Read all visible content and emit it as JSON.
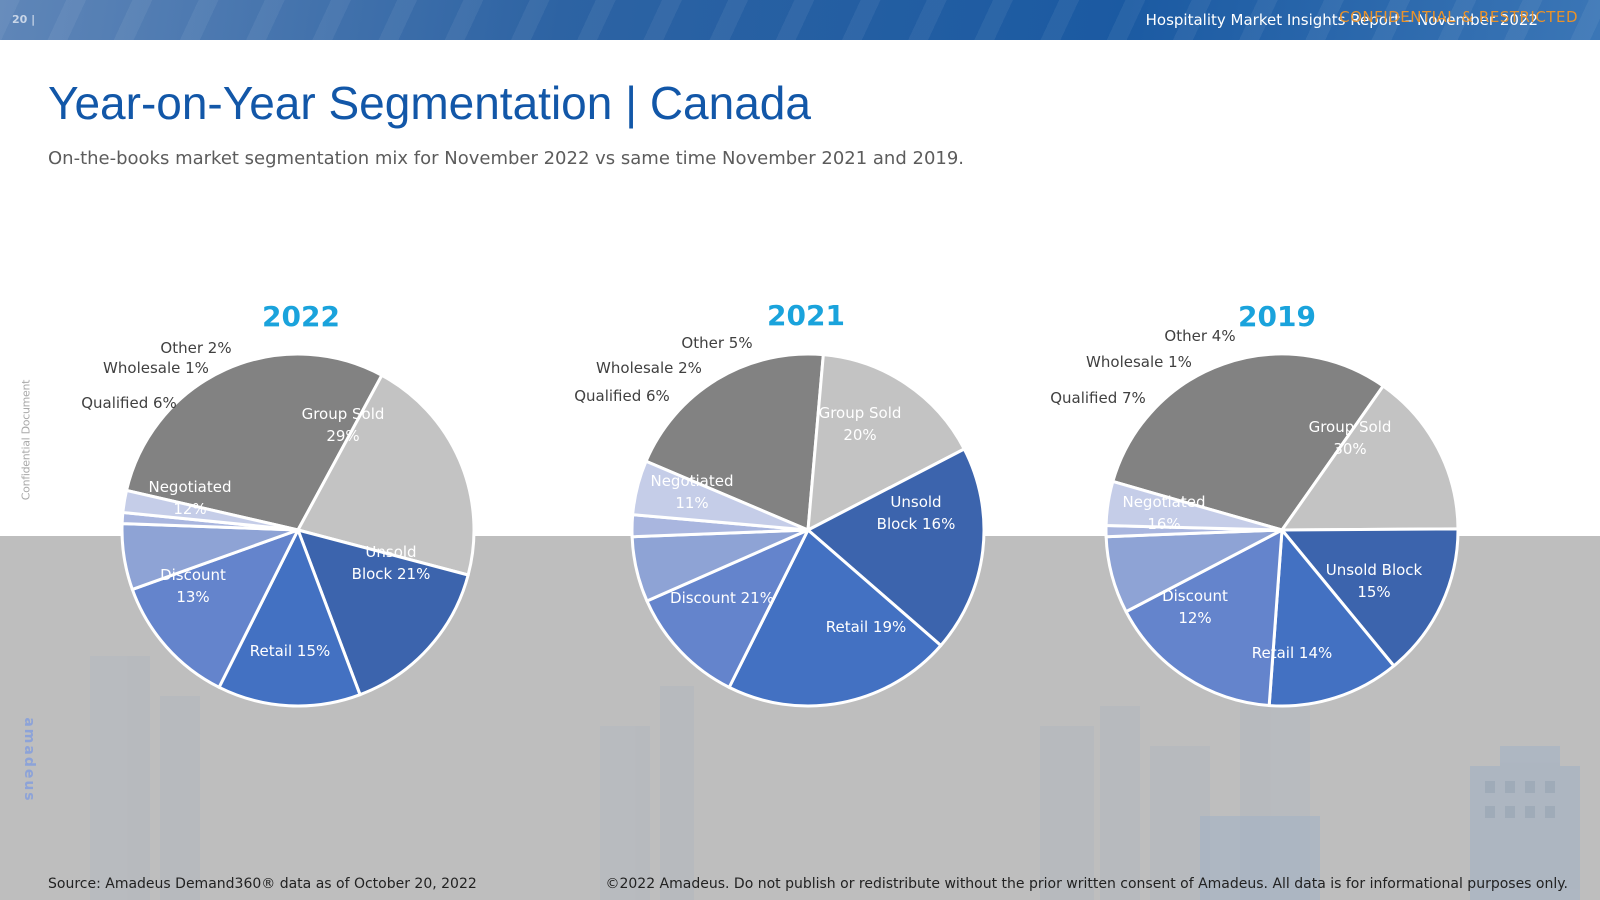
{
  "header": {
    "page_number": "20 |",
    "report_title": "Hospitality Market Insights Report – November 2022",
    "confidential": "CONFIDENTIAL & RESTRICTED"
  },
  "title": "Year-on-Year Segmentation | Canada",
  "subtitle": "On-the-books market segmentation mix for November 2022 vs same time November 2021 and 2019.",
  "side_label": "Confidential Document",
  "brand": "amadeus",
  "footer": {
    "source": "Source: Amadeus Demand360® data as of October 20, 2022",
    "copyright": "©2022 Amadeus. Do not publish or redistribute without the prior written consent of Amadeus. All data is for informational purposes only."
  },
  "colors": {
    "title": "#1257a8",
    "chart_title": "#1aa3dc",
    "Group Sold": "#828282",
    "Unsold Block": "#c3c3c3",
    "Retail": "#3c64ad",
    "Discount": "#4371c2",
    "Negotiated": "#6484cc",
    "Qualified": "#8ea3d5",
    "Wholesale": "#a9b6df",
    "Other": "#c5cde8"
  },
  "chart_data": [
    {
      "type": "pie",
      "title": "2022",
      "slices": [
        {
          "name": "Group Sold",
          "value": 29,
          "label_lines": [
            "Group Sold",
            "29%"
          ]
        },
        {
          "name": "Unsold Block",
          "value": 21,
          "label_lines": [
            "Unsold",
            "Block 21%"
          ]
        },
        {
          "name": "Retail",
          "value": 15,
          "label_lines": [
            "Retail 15%"
          ]
        },
        {
          "name": "Discount",
          "value": 13,
          "label_lines": [
            "Discount",
            "13%"
          ]
        },
        {
          "name": "Negotiated",
          "value": 12,
          "label_lines": [
            "Negotiated",
            "12%"
          ]
        },
        {
          "name": "Qualified",
          "value": 6,
          "label_lines": [
            "Qualified 6%"
          ]
        },
        {
          "name": "Wholesale",
          "value": 1,
          "label_lines": [
            "Wholesale 1%"
          ]
        },
        {
          "name": "Other",
          "value": 2,
          "label_lines": [
            "Other 2%"
          ]
        }
      ]
    },
    {
      "type": "pie",
      "title": "2021",
      "slices": [
        {
          "name": "Group Sold",
          "value": 20,
          "label_lines": [
            "Group Sold",
            "20%"
          ]
        },
        {
          "name": "Unsold Block",
          "value": 16,
          "label_lines": [
            "Unsold",
            "Block 16%"
          ]
        },
        {
          "name": "Retail",
          "value": 19,
          "label_lines": [
            "Retail 19%"
          ]
        },
        {
          "name": "Discount",
          "value": 21,
          "label_lines": [
            "Discount 21%"
          ]
        },
        {
          "name": "Negotiated",
          "value": 11,
          "label_lines": [
            "Negotiated",
            "11%"
          ]
        },
        {
          "name": "Qualified",
          "value": 6,
          "label_lines": [
            "Qualified 6%"
          ]
        },
        {
          "name": "Wholesale",
          "value": 2,
          "label_lines": [
            "Wholesale 2%"
          ]
        },
        {
          "name": "Other",
          "value": 5,
          "label_lines": [
            "Other 5%"
          ]
        }
      ]
    },
    {
      "type": "pie",
      "title": "2019",
      "slices": [
        {
          "name": "Group Sold",
          "value": 30,
          "label_lines": [
            "Group Sold",
            "30%"
          ]
        },
        {
          "name": "Unsold Block",
          "value": 15,
          "label_lines": [
            "Unsold Block",
            "15%"
          ]
        },
        {
          "name": "Retail",
          "value": 14,
          "label_lines": [
            "Retail 14%"
          ]
        },
        {
          "name": "Discount",
          "value": 12,
          "label_lines": [
            "Discount",
            "12%"
          ]
        },
        {
          "name": "Negotiated",
          "value": 16,
          "label_lines": [
            "Negotiated",
            "16%"
          ]
        },
        {
          "name": "Qualified",
          "value": 7,
          "label_lines": [
            "Qualified 7%"
          ]
        },
        {
          "name": "Wholesale",
          "value": 1,
          "label_lines": [
            "Wholesale 1%"
          ]
        },
        {
          "name": "Other",
          "value": 4,
          "label_lines": [
            "Other 4%"
          ]
        }
      ]
    }
  ]
}
